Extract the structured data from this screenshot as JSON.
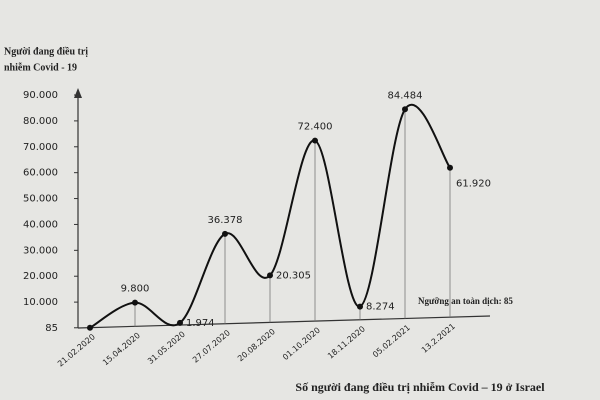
{
  "chart_data": {
    "type": "line",
    "y_label": [
      "Người đang điều trị",
      "nhiễm Covid - 19"
    ],
    "annotation": "Ngưỡng an toàn dịch: 85",
    "caption": "Số người đang điều trị nhiễm Covid – 19 ở Israel",
    "categories": [
      "21.02.2020",
      "15.04.2020",
      "31.05.2020",
      "27.07.2020",
      "20.08.2020",
      "01.10.2020",
      "18.11.2020",
      "05.02.2021",
      "13.2.2021"
    ],
    "values": [
      85,
      9800,
      1974,
      36378,
      20305,
      72400,
      8274,
      84484,
      61920
    ],
    "value_labels": [
      null,
      "9.800",
      "1.974",
      "36.378",
      "20.305",
      "72.400",
      "8.274",
      "84.484",
      "61.920"
    ],
    "color": "#111111",
    "ylim": [
      0,
      90000
    ],
    "yticks": [
      85,
      {
        "value": 10000,
        "label": "10.000"
      },
      {
        "value": 20000,
        "label": "20.000"
      },
      {
        "value": 30000,
        "label": "30.000"
      },
      {
        "value": 40000,
        "label": "40.000"
      },
      {
        "value": 50000,
        "label": "50.000"
      },
      {
        "value": 60000,
        "label": "60.000"
      },
      {
        "value": 70000,
        "label": "70.000"
      },
      {
        "value": 80000,
        "label": "80.000"
      },
      {
        "value": 90000,
        "label": "90.000"
      }
    ]
  }
}
